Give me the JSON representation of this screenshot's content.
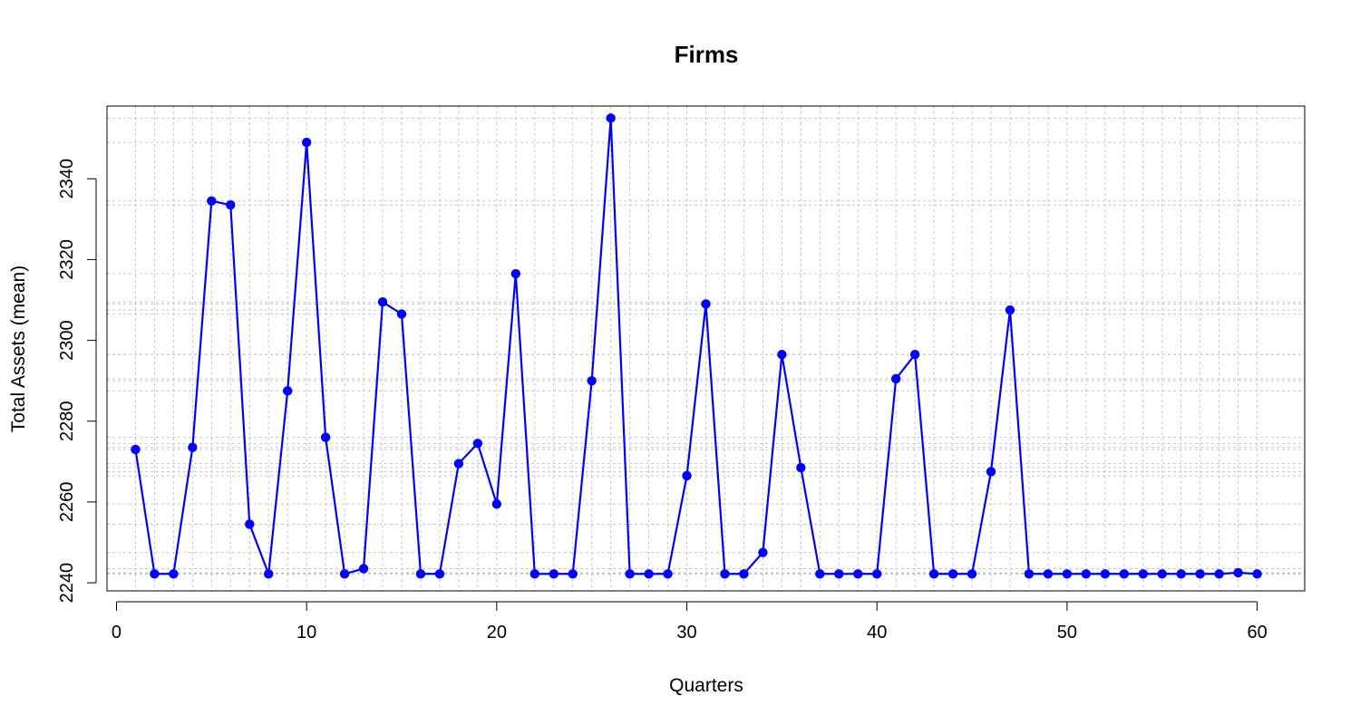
{
  "chart_data": {
    "type": "line",
    "title": "Firms",
    "xlabel": "Quarters",
    "ylabel": "Total Assets (mean)",
    "xlim": [
      -0.5,
      62.5
    ],
    "ylim": [
      2238,
      2358
    ],
    "xticks": [
      0,
      10,
      20,
      30,
      40,
      50,
      60
    ],
    "yticks": [
      2240,
      2260,
      2280,
      2300,
      2320,
      2340
    ],
    "grid": true,
    "series_color": "#0000ff",
    "grid_color": "#c8c8c8",
    "x": [
      1,
      2,
      3,
      4,
      5,
      6,
      7,
      8,
      9,
      10,
      11,
      12,
      13,
      14,
      15,
      16,
      17,
      18,
      19,
      20,
      21,
      22,
      23,
      24,
      25,
      26,
      27,
      28,
      29,
      30,
      31,
      32,
      33,
      34,
      35,
      36,
      37,
      38,
      39,
      40,
      41,
      42,
      43,
      44,
      45,
      46,
      47,
      48,
      49,
      50,
      51,
      52,
      53,
      54,
      55,
      56,
      57,
      58,
      59,
      60
    ],
    "y": [
      2273,
      2242.2,
      2242.2,
      2273.5,
      2334.5,
      2333.5,
      2254.5,
      2242.2,
      2287.5,
      2349,
      2276,
      2242.2,
      2243.5,
      2309.5,
      2306.5,
      2242.2,
      2242.2,
      2269.5,
      2274.5,
      2259.5,
      2316.5,
      2242.2,
      2242.2,
      2242.2,
      2290,
      2355,
      2242.2,
      2242.2,
      2242.2,
      2266.5,
      2309,
      2242.2,
      2242.2,
      2247.5,
      2296.5,
      2268.5,
      2242.2,
      2242.2,
      2242.2,
      2242.2,
      2290.5,
      2296.5,
      2242.2,
      2242.2,
      2242.2,
      2267.5,
      2307.5,
      2242.2,
      2242.2,
      2242.2,
      2242.2,
      2242.2,
      2242.2,
      2242.2,
      2242.2,
      2242.2,
      2242.2,
      2242.2,
      2242.5,
      2242.2
    ]
  }
}
